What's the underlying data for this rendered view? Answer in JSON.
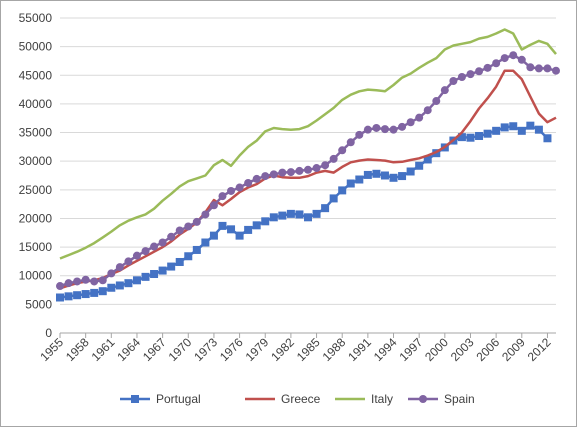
{
  "chart_data": {
    "type": "line",
    "title": "",
    "xlabel": "",
    "ylabel": "",
    "ylim": [
      0,
      55000
    ],
    "yticks": [
      0,
      5000,
      10000,
      15000,
      20000,
      25000,
      30000,
      35000,
      40000,
      45000,
      50000,
      55000
    ],
    "xlim": [
      1955,
      2013
    ],
    "xticks": [
      1955,
      1958,
      1961,
      1964,
      1967,
      1970,
      1973,
      1976,
      1979,
      1982,
      1985,
      1988,
      1991,
      1994,
      1997,
      2000,
      2003,
      2006,
      2009,
      2012
    ],
    "grid": "horizontal",
    "legend": "bottom",
    "series": [
      {
        "name": "Portugal",
        "color": "#4472c4",
        "marker": "square",
        "x": [
          1955,
          1956,
          1957,
          1958,
          1959,
          1960,
          1961,
          1962,
          1963,
          1964,
          1965,
          1966,
          1967,
          1968,
          1969,
          1970,
          1971,
          1972,
          1973,
          1974,
          1975,
          1976,
          1977,
          1978,
          1979,
          1980,
          1981,
          1982,
          1983,
          1984,
          1985,
          1986,
          1987,
          1988,
          1989,
          1990,
          1991,
          1992,
          1993,
          1994,
          1995,
          1996,
          1997,
          1998,
          1999,
          2000,
          2001,
          2002,
          2003,
          2004,
          2005,
          2006,
          2007,
          2008,
          2009,
          2010,
          2011,
          2012
        ],
        "values": [
          6200,
          6400,
          6600,
          6800,
          7000,
          7300,
          7900,
          8300,
          8700,
          9200,
          9800,
          10300,
          10900,
          11600,
          12400,
          13400,
          14500,
          15800,
          17000,
          18700,
          18100,
          17000,
          18000,
          18800,
          19500,
          20200,
          20500,
          20800,
          20700,
          20200,
          20800,
          21800,
          23500,
          24900,
          26100,
          26800,
          27600,
          27800,
          27500,
          27100,
          27400,
          28200,
          29200,
          30300,
          31400,
          32400,
          33600,
          34200,
          34100,
          34400,
          34800,
          35300,
          35900,
          36100,
          35300,
          36200,
          35500,
          34000
        ]
      },
      {
        "name": "Greece",
        "color": "#c0504d",
        "marker": "none",
        "x": [
          1955,
          1956,
          1957,
          1958,
          1959,
          1960,
          1961,
          1962,
          1963,
          1964,
          1965,
          1966,
          1967,
          1968,
          1969,
          1970,
          1971,
          1972,
          1973,
          1974,
          1975,
          1976,
          1977,
          1978,
          1979,
          1980,
          1981,
          1982,
          1983,
          1984,
          1985,
          1986,
          1987,
          1988,
          1989,
          1990,
          1991,
          1992,
          1993,
          1994,
          1995,
          1996,
          1997,
          1998,
          1999,
          2000,
          2001,
          2002,
          2003,
          2004,
          2005,
          2006,
          2007,
          2008,
          2009,
          2010,
          2011,
          2012,
          2013
        ],
        "values": [
          7800,
          8300,
          8700,
          9000,
          9200,
          9600,
          10300,
          10900,
          11800,
          12600,
          13400,
          14200,
          15000,
          16000,
          17200,
          18200,
          19300,
          21100,
          23200,
          22300,
          23400,
          24600,
          25400,
          26000,
          27000,
          27500,
          27200,
          27100,
          27100,
          27400,
          28000,
          28300,
          28000,
          29000,
          29800,
          30100,
          30300,
          30200,
          30100,
          29800,
          29900,
          30200,
          30500,
          31000,
          31600,
          32500,
          33700,
          35000,
          37000,
          39200,
          41000,
          43000,
          45800,
          45800,
          44300,
          41300,
          38300,
          36800,
          37600
        ]
      },
      {
        "name": "Italy",
        "color": "#9bbb59",
        "marker": "none",
        "x": [
          1955,
          1956,
          1957,
          1958,
          1959,
          1960,
          1961,
          1962,
          1963,
          1964,
          1965,
          1966,
          1967,
          1968,
          1969,
          1970,
          1971,
          1972,
          1973,
          1974,
          1975,
          1976,
          1977,
          1978,
          1979,
          1980,
          1981,
          1982,
          1983,
          1984,
          1985,
          1986,
          1987,
          1988,
          1989,
          1990,
          1991,
          1992,
          1993,
          1994,
          1995,
          1996,
          1997,
          1998,
          1999,
          2000,
          2001,
          2002,
          2003,
          2004,
          2005,
          2006,
          2007,
          2008,
          2009,
          2010,
          2011,
          2012,
          2013
        ],
        "values": [
          13000,
          13600,
          14200,
          14900,
          15700,
          16700,
          17700,
          18800,
          19600,
          20200,
          20700,
          21700,
          23100,
          24300,
          25600,
          26500,
          27000,
          27500,
          29300,
          30200,
          29200,
          31000,
          32500,
          33600,
          35200,
          35800,
          35600,
          35500,
          35600,
          36100,
          37100,
          38200,
          39300,
          40700,
          41600,
          42200,
          42500,
          42400,
          42200,
          43300,
          44600,
          45300,
          46300,
          47200,
          48000,
          49500,
          50200,
          50500,
          50800,
          51400,
          51700,
          52300,
          53000,
          52300,
          49500,
          50300,
          51000,
          50500,
          48700
        ]
      },
      {
        "name": "Spain",
        "color": "#8064a2",
        "marker": "circle",
        "x": [
          1955,
          1956,
          1957,
          1958,
          1959,
          1960,
          1961,
          1962,
          1963,
          1964,
          1965,
          1966,
          1967,
          1968,
          1969,
          1970,
          1971,
          1972,
          1973,
          1974,
          1975,
          1976,
          1977,
          1978,
          1979,
          1980,
          1981,
          1982,
          1983,
          1984,
          1985,
          1986,
          1987,
          1988,
          1989,
          1990,
          1991,
          1992,
          1993,
          1994,
          1995,
          1996,
          1997,
          1998,
          1999,
          2000,
          2001,
          2002,
          2003,
          2004,
          2005,
          2006,
          2007,
          2008,
          2009,
          2010,
          2011,
          2012,
          2013
        ],
        "values": [
          8200,
          8700,
          9000,
          9300,
          9000,
          9200,
          10400,
          11500,
          12500,
          13500,
          14300,
          15100,
          15800,
          16800,
          17900,
          18600,
          19400,
          20700,
          22300,
          23900,
          24800,
          25400,
          26200,
          26900,
          27400,
          27700,
          28000,
          28100,
          28300,
          28500,
          28800,
          29300,
          30400,
          31900,
          33300,
          34600,
          35500,
          35800,
          35600,
          35500,
          36000,
          36800,
          37600,
          38900,
          40500,
          42400,
          44000,
          44700,
          45200,
          45700,
          46300,
          47100,
          48000,
          48500,
          47700,
          46400,
          46200,
          46200,
          45800
        ]
      }
    ]
  }
}
